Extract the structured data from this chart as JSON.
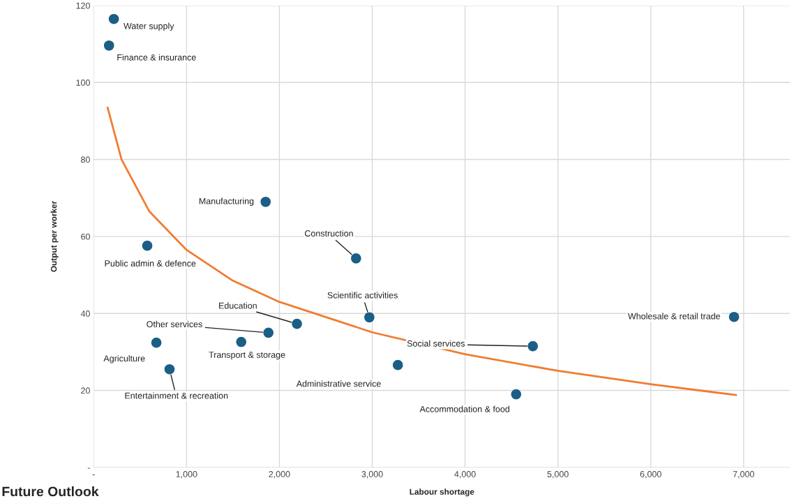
{
  "chart_data": {
    "type": "scatter",
    "xlabel": "Labour shortage",
    "ylabel": "Output per worker",
    "xlim": [
      0,
      7500
    ],
    "ylim": [
      0,
      120
    ],
    "xticks": [
      {
        "value": 0,
        "label": "-"
      },
      {
        "value": 1000,
        "label": "1,000"
      },
      {
        "value": 2000,
        "label": "2,000"
      },
      {
        "value": 3000,
        "label": "3,000"
      },
      {
        "value": 4000,
        "label": "4,000"
      },
      {
        "value": 5000,
        "label": "5,000"
      },
      {
        "value": 6000,
        "label": "6,000"
      },
      {
        "value": 7000,
        "label": "7,000"
      }
    ],
    "yticks": [
      {
        "value": 0,
        "label": "-"
      },
      20,
      40,
      60,
      80,
      100,
      120
    ],
    "grid": true,
    "series": [
      {
        "marker": "circle",
        "color": "#1b5e86",
        "x": [
          217,
          165,
          1852,
          577,
          2826,
          2189,
          2969,
          1882,
          1589,
          675,
          817,
          3276,
          4730,
          4550,
          6897
        ],
        "values": [
          116.5,
          109.6,
          69.0,
          57.6,
          54.3,
          37.3,
          39.0,
          35.0,
          32.6,
          32.4,
          25.5,
          26.6,
          31.5,
          19.0,
          39.1
        ]
      },
      {
        "type": "line",
        "color": "#f07c30",
        "x": [
          150,
          300,
          600,
          1000,
          1500,
          2000,
          3000,
          4000,
          5000,
          6000,
          6920
        ],
        "values": [
          93.5,
          80,
          66.5,
          56.5,
          48.5,
          43,
          35.1,
          29.4,
          25.1,
          21.6,
          18.8
        ]
      }
    ],
    "annotations": [
      {
        "text": "Water supply",
        "x": 217,
        "y": 116.5
      },
      {
        "text": "Finance & insurance",
        "x": 165,
        "y": 109.6
      },
      {
        "text": "Manufacturing",
        "x": 1852,
        "y": 69.0
      },
      {
        "text": "Public admin & defence",
        "x": 577,
        "y": 57.6
      },
      {
        "text": "Construction",
        "x": 2826,
        "y": 54.3
      },
      {
        "text": "Education",
        "x": 2189,
        "y": 37.3
      },
      {
        "text": "Scientific activities",
        "x": 2969,
        "y": 39.0
      },
      {
        "text": "Other services",
        "x": 1882,
        "y": 35.0
      },
      {
        "text": "Transport & storage",
        "x": 1589,
        "y": 32.6
      },
      {
        "text": "Agriculture",
        "x": 675,
        "y": 32.4
      },
      {
        "text": "Entertainment & recreation",
        "x": 817,
        "y": 25.5
      },
      {
        "text": "Administrative service",
        "x": 3276,
        "y": 26.6
      },
      {
        "text": "Social services",
        "x": 4730,
        "y": 31.5
      },
      {
        "text": "Accommodation & food",
        "x": 4550,
        "y": 19.0
      },
      {
        "text": "Wholesale & retail trade",
        "x": 6897,
        "y": 39.1
      },
      "Future Outlook"
    ]
  }
}
